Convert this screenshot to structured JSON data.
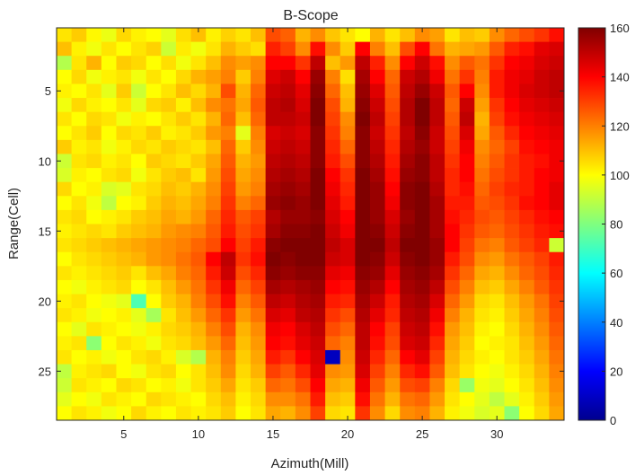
{
  "chart_data": {
    "type": "heatmap",
    "title": "B-Scope",
    "xlabel": "Azimuth(Mill)",
    "ylabel": "Range(Cell)",
    "x_ticks": [
      5,
      10,
      15,
      20,
      25,
      30
    ],
    "y_ticks": [
      5,
      10,
      15,
      20,
      25
    ],
    "x_range": [
      0.5,
      34.5
    ],
    "y_range": [
      0.5,
      28.5
    ],
    "colormap": "jet",
    "colorbar_limits": [
      0,
      160
    ],
    "colorbar_ticks": [
      0,
      20,
      40,
      60,
      80,
      100,
      120,
      140,
      160
    ],
    "columns": 34,
    "rows": 28,
    "values": [
      [
        104,
        108,
        101,
        97,
        106,
        102,
        100,
        96,
        105,
        110,
        102,
        107,
        104,
        110,
        128,
        125,
        112,
        118,
        109,
        104,
        100,
        112,
        104,
        110,
        118,
        115,
        104,
        110,
        108,
        118,
        124,
        128,
        132,
        138
      ],
      [
        110,
        102,
        98,
        104,
        100,
        104,
        107,
        92,
        103,
        98,
        104,
        112,
        108,
        105,
        135,
        130,
        118,
        138,
        118,
        108,
        140,
        120,
        110,
        128,
        140,
        122,
        112,
        114,
        116,
        126,
        135,
        138,
        144,
        146
      ],
      [
        88,
        104,
        112,
        100,
        108,
        106,
        100,
        105,
        98,
        104,
        110,
        118,
        115,
        118,
        140,
        140,
        132,
        150,
        110,
        116,
        150,
        135,
        118,
        140,
        148,
        138,
        118,
        126,
        122,
        132,
        140,
        142,
        146,
        148
      ],
      [
        100,
        106,
        98,
        102,
        104,
        98,
        104,
        100,
        106,
        112,
        115,
        120,
        108,
        120,
        145,
        148,
        140,
        156,
        120,
        105,
        154,
        140,
        124,
        148,
        152,
        142,
        122,
        132,
        120,
        136,
        142,
        144,
        148,
        150
      ],
      [
        102,
        100,
        104,
        96,
        108,
        92,
        100,
        104,
        110,
        106,
        112,
        128,
        112,
        124,
        148,
        150,
        144,
        158,
        124,
        110,
        156,
        145,
        126,
        150,
        156,
        148,
        126,
        140,
        118,
        136,
        142,
        146,
        148,
        150
      ],
      [
        98,
        106,
        102,
        100,
        104,
        96,
        106,
        108,
        102,
        110,
        118,
        122,
        114,
        126,
        150,
        152,
        146,
        160,
        128,
        112,
        158,
        148,
        128,
        152,
        160,
        150,
        124,
        148,
        115,
        132,
        140,
        144,
        146,
        148
      ],
      [
        104,
        100,
        106,
        104,
        98,
        102,
        100,
        104,
        108,
        104,
        112,
        124,
        110,
        124,
        150,
        150,
        148,
        160,
        130,
        118,
        160,
        150,
        130,
        152,
        160,
        150,
        126,
        150,
        112,
        130,
        138,
        142,
        144,
        146
      ],
      [
        100,
        104,
        108,
        100,
        106,
        104,
        108,
        102,
        104,
        108,
        116,
        120,
        96,
        120,
        146,
        148,
        146,
        158,
        132,
        120,
        158,
        148,
        132,
        150,
        158,
        148,
        128,
        146,
        114,
        126,
        134,
        140,
        142,
        144
      ],
      [
        108,
        102,
        104,
        98,
        102,
        106,
        104,
        108,
        106,
        104,
        110,
        124,
        108,
        118,
        148,
        150,
        148,
        158,
        134,
        124,
        158,
        150,
        134,
        152,
        156,
        148,
        130,
        142,
        118,
        124,
        130,
        138,
        140,
        142
      ],
      [
        92,
        104,
        106,
        102,
        104,
        100,
        108,
        106,
        104,
        108,
        114,
        126,
        112,
        116,
        150,
        152,
        150,
        158,
        136,
        128,
        158,
        152,
        136,
        154,
        158,
        150,
        132,
        140,
        120,
        126,
        132,
        136,
        138,
        142
      ],
      [
        94,
        102,
        100,
        104,
        106,
        98,
        104,
        108,
        110,
        104,
        116,
        128,
        114,
        118,
        152,
        154,
        152,
        160,
        140,
        132,
        160,
        154,
        138,
        156,
        158,
        150,
        134,
        140,
        122,
        128,
        132,
        136,
        140,
        142
      ],
      [
        106,
        100,
        102,
        94,
        96,
        104,
        106,
        110,
        108,
        112,
        118,
        130,
        116,
        120,
        154,
        156,
        154,
        160,
        142,
        134,
        160,
        156,
        140,
        158,
        160,
        152,
        134,
        138,
        124,
        130,
        134,
        136,
        140,
        144
      ],
      [
        100,
        104,
        98,
        90,
        100,
        102,
        108,
        112,
        110,
        114,
        120,
        132,
        120,
        124,
        156,
        158,
        156,
        160,
        144,
        136,
        160,
        156,
        142,
        158,
        160,
        154,
        136,
        136,
        126,
        128,
        132,
        138,
        140,
        144
      ],
      [
        104,
        106,
        100,
        102,
        104,
        108,
        110,
        114,
        112,
        116,
        124,
        134,
        126,
        130,
        152,
        156,
        156,
        158,
        146,
        140,
        160,
        156,
        146,
        156,
        160,
        154,
        138,
        134,
        128,
        126,
        130,
        134,
        138,
        140
      ],
      [
        102,
        104,
        106,
        104,
        108,
        110,
        112,
        116,
        118,
        120,
        126,
        136,
        128,
        132,
        154,
        158,
        158,
        160,
        148,
        142,
        160,
        158,
        148,
        158,
        160,
        154,
        140,
        132,
        126,
        124,
        128,
        132,
        136,
        138
      ],
      [
        104,
        106,
        108,
        110,
        112,
        114,
        116,
        118,
        120,
        124,
        128,
        140,
        130,
        136,
        158,
        160,
        160,
        160,
        150,
        146,
        160,
        160,
        150,
        160,
        160,
        156,
        140,
        130,
        122,
        120,
        126,
        130,
        134,
        92
      ],
      [
        100,
        104,
        106,
        108,
        110,
        112,
        116,
        118,
        122,
        126,
        140,
        150,
        132,
        138,
        160,
        158,
        160,
        160,
        148,
        146,
        160,
        158,
        148,
        158,
        160,
        156,
        136,
        128,
        118,
        116,
        122,
        126,
        130,
        136
      ],
      [
        104,
        102,
        104,
        106,
        108,
        104,
        110,
        114,
        120,
        124,
        136,
        148,
        128,
        134,
        158,
        156,
        158,
        158,
        144,
        142,
        158,
        156,
        144,
        156,
        158,
        154,
        132,
        124,
        114,
        112,
        118,
        124,
        128,
        134
      ],
      [
        100,
        98,
        102,
        104,
        106,
        100,
        104,
        110,
        116,
        122,
        132,
        142,
        124,
        130,
        154,
        152,
        154,
        156,
        140,
        138,
        156,
        152,
        140,
        154,
        156,
        150,
        128,
        120,
        110,
        108,
        114,
        120,
        126,
        132
      ],
      [
        102,
        104,
        100,
        98,
        96,
        72,
        100,
        108,
        112,
        120,
        128,
        138,
        120,
        126,
        150,
        148,
        152,
        154,
        136,
        134,
        154,
        148,
        136,
        152,
        154,
        146,
        124,
        116,
        106,
        104,
        110,
        116,
        122,
        130
      ],
      [
        104,
        102,
        98,
        100,
        102,
        96,
        86,
        104,
        110,
        116,
        124,
        132,
        116,
        122,
        146,
        144,
        150,
        152,
        132,
        128,
        152,
        144,
        134,
        150,
        152,
        142,
        120,
        112,
        104,
        102,
        108,
        114,
        120,
        128
      ],
      [
        100,
        96,
        104,
        102,
        100,
        98,
        102,
        106,
        108,
        112,
        120,
        128,
        112,
        118,
        142,
        140,
        146,
        150,
        128,
        124,
        150,
        140,
        130,
        148,
        150,
        138,
        116,
        110,
        102,
        100,
        106,
        112,
        118,
        126
      ],
      [
        102,
        104,
        82,
        100,
        104,
        102,
        98,
        104,
        106,
        110,
        116,
        124,
        110,
        116,
        140,
        138,
        144,
        148,
        124,
        120,
        150,
        138,
        128,
        146,
        148,
        134,
        114,
        108,
        100,
        102,
        104,
        110,
        116,
        124
      ],
      [
        104,
        100,
        102,
        98,
        100,
        104,
        106,
        102,
        94,
        88,
        112,
        120,
        108,
        114,
        136,
        132,
        140,
        146,
        10,
        118,
        148,
        134,
        124,
        140,
        144,
        130,
        112,
        106,
        102,
        100,
        104,
        108,
        114,
        122
      ],
      [
        90,
        102,
        104,
        106,
        100,
        98,
        104,
        106,
        100,
        104,
        110,
        118,
        106,
        112,
        130,
        126,
        134,
        144,
        118,
        116,
        146,
        130,
        120,
        134,
        138,
        126,
        110,
        104,
        100,
        98,
        102,
        106,
        112,
        120
      ],
      [
        92,
        104,
        102,
        100,
        106,
        104,
        100,
        102,
        98,
        104,
        108,
        114,
        104,
        108,
        124,
        122,
        128,
        140,
        114,
        112,
        142,
        126,
        116,
        128,
        130,
        120,
        106,
        84,
        98,
        96,
        100,
        104,
        110,
        118
      ],
      [
        96,
        100,
        98,
        104,
        102,
        100,
        106,
        104,
        102,
        100,
        106,
        110,
        102,
        106,
        118,
        118,
        122,
        136,
        110,
        108,
        138,
        122,
        112,
        122,
        124,
        116,
        104,
        100,
        96,
        90,
        96,
        102,
        108,
        116
      ],
      [
        100,
        104,
        102,
        98,
        100,
        106,
        102,
        100,
        104,
        102,
        104,
        108,
        100,
        104,
        114,
        112,
        118,
        130,
        106,
        104,
        132,
        118,
        106,
        118,
        120,
        112,
        102,
        98,
        94,
        96,
        82,
        100,
        106,
        114
      ]
    ]
  }
}
